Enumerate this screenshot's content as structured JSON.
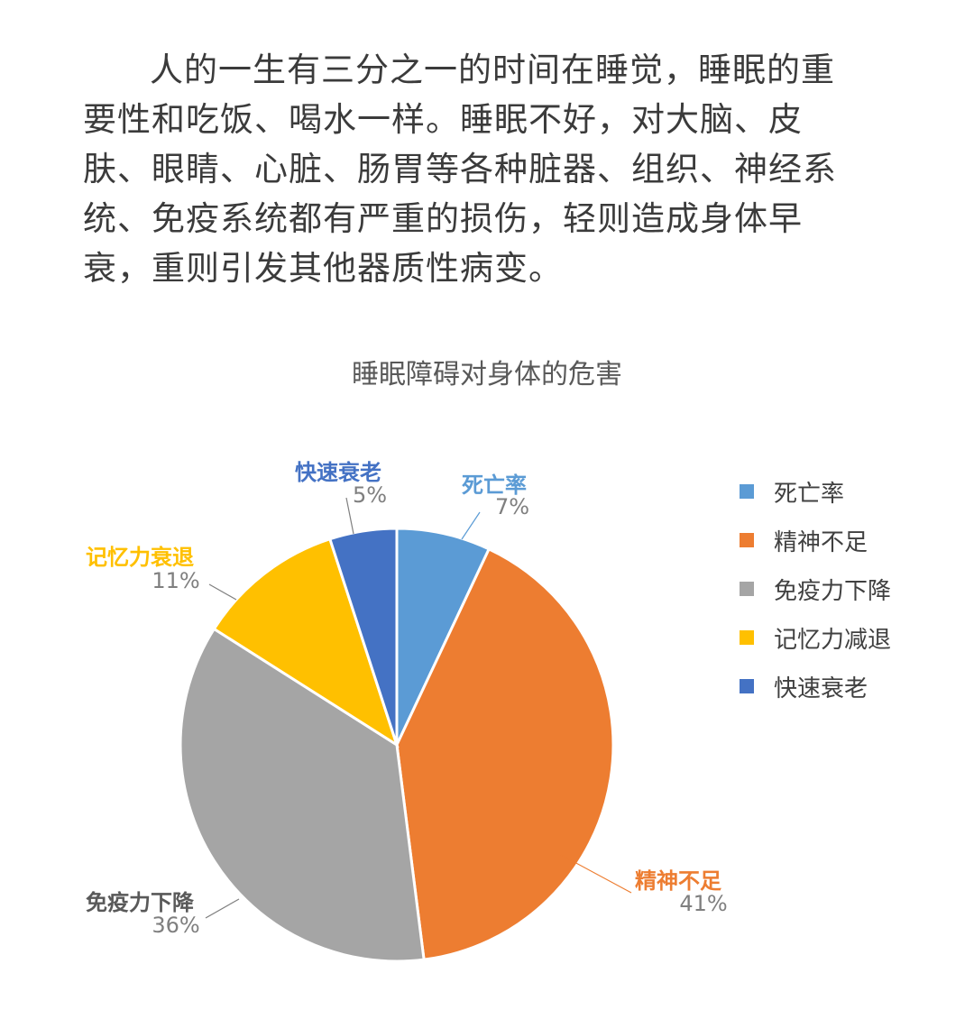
{
  "intro_text": "人的一生有三分之一的时间在睡觉，睡眠的重要性和吃饭、喝水一样。睡眠不好，对大脑、皮肤、眼睛、心脏、肠胃等各种脏器、组织、神经系统、免疫系统都有严重的损伤，轻则造成身体早衰，重则引发其他器质性病变。",
  "chart_data": {
    "type": "pie",
    "title": "睡眠障碍对身体的危害",
    "slices": [
      {
        "label": "死亡率",
        "legend_label": "死亡率",
        "value": 7,
        "value_label": "7%",
        "color": "#5B9BD5"
      },
      {
        "label": "精神不足",
        "legend_label": "精神不足",
        "value": 41,
        "value_label": "41%",
        "color": "#ED7D31"
      },
      {
        "label": "免疫力下降",
        "legend_label": "免疫力下降",
        "value": 36,
        "value_label": "36%",
        "color": "#A5A5A5"
      },
      {
        "label": "记忆力衰退",
        "legend_label": "记忆力减退",
        "value": 11,
        "value_label": "11%",
        "color": "#FFC000"
      },
      {
        "label": "快速衰老",
        "legend_label": "快速衰老",
        "value": 5,
        "value_label": "5%",
        "color": "#4472C4"
      }
    ],
    "legend_position": "right",
    "label_colors": {
      "死亡率": "#5B9BD5",
      "精神不足": "#ED7D31",
      "免疫力下降": "#595959",
      "记忆力衰退": "#FFC000",
      "快速衰老": "#4472C4"
    }
  }
}
